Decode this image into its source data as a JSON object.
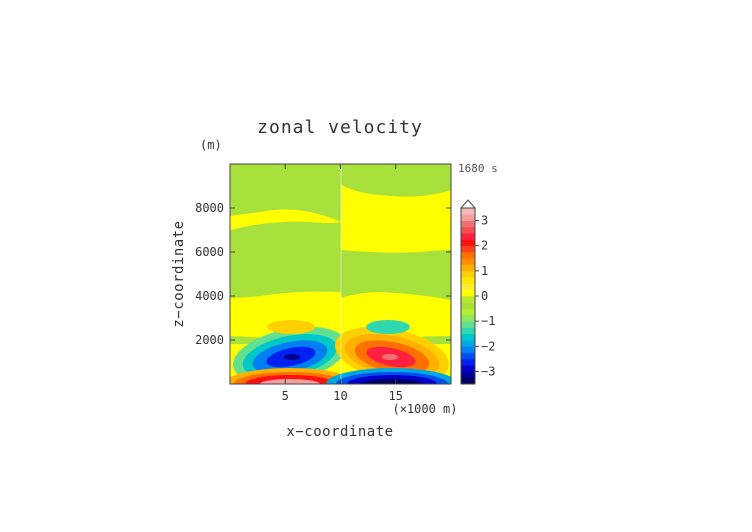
{
  "chart_data": {
    "type": "heatmap",
    "title": "zonal velocity",
    "xlabel": "x−coordinate",
    "ylabel": "z−coordinate",
    "x_unit": "(×1000 m)",
    "y_unit": "(m)",
    "time_label": "1680 s",
    "xlim": [
      0,
      20
    ],
    "ylim": [
      0,
      10000
    ],
    "x_ticks": [
      5,
      10,
      15
    ],
    "y_ticks": [
      2000,
      4000,
      6000,
      8000
    ],
    "colorbar": {
      "levels": [
        -3.5,
        -3.25,
        -3,
        -2.75,
        -2.5,
        -2.25,
        -2,
        -1.75,
        -1.5,
        -1.25,
        -1,
        -0.75,
        -0.5,
        -0.25,
        0,
        0.25,
        0.5,
        0.75,
        1,
        1.25,
        1.5,
        1.75,
        2,
        2.25,
        2.5,
        2.75,
        3,
        3.25,
        3.5
      ],
      "tick_labels": [
        "3",
        "2",
        "1",
        "0",
        "−1",
        "−2",
        "−3"
      ],
      "tick_values": [
        3,
        2,
        1,
        0,
        -1,
        -2,
        -3
      ],
      "colors": [
        "#000060",
        "#000090",
        "#0000c8",
        "#0020f0",
        "#0050f0",
        "#0080f0",
        "#00a8e0",
        "#00c8c8",
        "#30d8b0",
        "#60e090",
        "#90e860",
        "#b4f030",
        "#a8e03c",
        "#b8e832",
        "#ffff00",
        "#f8f030",
        "#ffe800",
        "#ffd000",
        "#ffb000",
        "#ff9000",
        "#ff7000",
        "#ff4020",
        "#ff1010",
        "#ff2040",
        "#f05050",
        "#f07070",
        "#f4a0a0",
        "#f8b8b8"
      ]
    },
    "features": [
      {
        "name": "surface jet (positive)",
        "x": 5.5,
        "z": 100,
        "value": 3.3
      },
      {
        "name": "surface jet (negative)",
        "x": 14.5,
        "z": 100,
        "value": -3.3
      },
      {
        "name": "low-level negative lobe",
        "x": 5.5,
        "z": 1200,
        "value": -2.7
      },
      {
        "name": "low-level positive lobe",
        "x": 14.5,
        "z": 1200,
        "value": 2.7
      },
      {
        "name": "upper positive lobe",
        "x": 5.5,
        "z": 2600,
        "value": 0.7
      },
      {
        "name": "upper negative lobe",
        "x": 14.5,
        "z": 2600,
        "value": -0.7
      }
    ]
  }
}
